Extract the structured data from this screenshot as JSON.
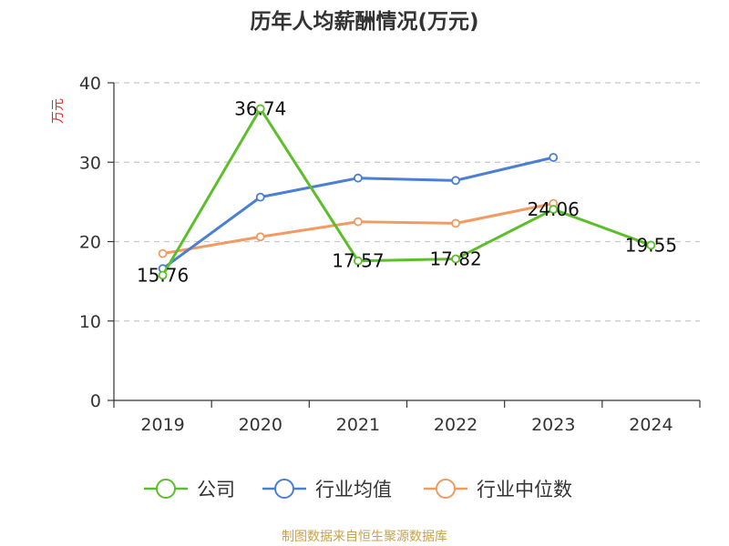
{
  "title": "历年人均薪酬情况(万元)",
  "source": "制图数据来自恒生聚源数据库",
  "chart_data": {
    "type": "line",
    "title": "历年人均薪酬情况(万元)",
    "ylabel": "万元",
    "xlabel": "",
    "categories": [
      "2019",
      "2020",
      "2021",
      "2022",
      "2023",
      "2024"
    ],
    "ylim": [
      0,
      40
    ],
    "yticks": [
      0,
      10,
      20,
      30,
      40
    ],
    "grid": true,
    "legend": "bottom",
    "series": [
      {
        "name": "公司",
        "color": "#5cbf2a",
        "values": [
          15.76,
          36.74,
          17.57,
          17.82,
          24.06,
          19.55
        ],
        "labels": [
          "15.76",
          "36.74",
          "17.57",
          "17.82",
          "24.06",
          "19.55"
        ]
      },
      {
        "name": "行业均值",
        "color": "#4a7fd4",
        "values": [
          16.6,
          25.6,
          28.0,
          27.7,
          30.6,
          null
        ]
      },
      {
        "name": "行业中位数",
        "color": "#f29a62",
        "values": [
          18.5,
          20.6,
          22.5,
          22.3,
          24.8,
          null
        ]
      }
    ]
  }
}
